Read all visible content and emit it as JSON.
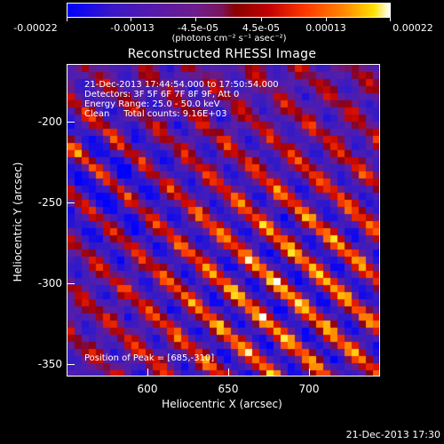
{
  "colorbar": {
    "tick_labels": [
      "-0.00022",
      "-0.00013",
      "-4.5e-05",
      "4.5e-05",
      "0.00013",
      "0.00022"
    ],
    "units": "(photons cm⁻² s⁻¹ asec⁻²)"
  },
  "title": "Reconstructed RHESSI Image",
  "annotations": {
    "time_range": "21-Dec-2013 17:44:54.000 to 17:50:54.000",
    "detectors": "Detectors: 3F 5F 6F 7F 8F 9F, Att 0",
    "energy_range": "Energy Range: 25.0 - 50.0 keV",
    "clean_counts": "Clean     Total counts: 9.16E+03",
    "peak_position": "Position of Peak = [685,-310]"
  },
  "axes": {
    "x_label": "Heliocentric X (arcsec)",
    "y_label": "Heliocentric Y (arcsec)",
    "x_tick_labels": [
      "600",
      "650",
      "700"
    ],
    "y_tick_labels": [
      "-200",
      "-250",
      "-300",
      "-350"
    ]
  },
  "footer": {
    "timestamp": "21-Dec-2013 17:30"
  },
  "chart_data": {
    "type": "heatmap",
    "title": "Reconstructed RHESSI Image",
    "xlabel": "Heliocentric X (arcsec)",
    "ylabel": "Heliocentric Y (arcsec)",
    "xlim": [
      555,
      740
    ],
    "ylim": [
      -358,
      -173
    ],
    "x_ticks": [
      600,
      650,
      700
    ],
    "y_ticks": [
      -200,
      -250,
      -300,
      -350
    ],
    "colorbar_range": [
      -0.00022,
      0.00022
    ],
    "peak": [
      685,
      -310
    ],
    "colormap": [
      "#0000ff",
      "#5a1aa8",
      "#8a0000",
      "#ff3a00",
      "#ffe000",
      "#ffffff"
    ]
  }
}
